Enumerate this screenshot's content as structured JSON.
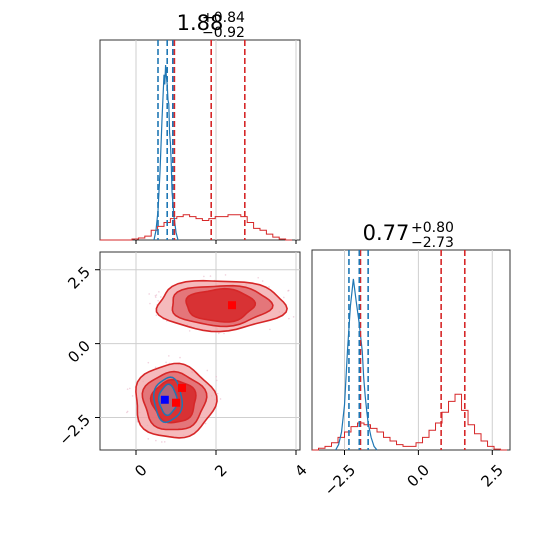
{
  "chart_data": {
    "type": "corner",
    "series_colors": {
      "posterior_wide": "#d62728",
      "posterior_narrow": "#1f77b4",
      "true_marker": "#0000ff",
      "max_marker": "#ff0000"
    },
    "grid": true,
    "params": [
      {
        "title_value": "1.88",
        "title_plus": "+0.84",
        "title_minus": "−0.92",
        "range": [
          -0.9,
          4.1
        ],
        "ticks": [
          0,
          2,
          4
        ],
        "tick_labels": [
          "0",
          "2",
          "4"
        ],
        "red_lines": [
          0.96,
          1.88,
          2.72
        ],
        "blue_lines": [
          0.55,
          0.78,
          0.92
        ]
      },
      {
        "title_value": "0.77",
        "title_plus": "+0.80",
        "title_minus": "−2.73",
        "range": [
          -3.6,
          3.1
        ],
        "ticks": [
          -2.5,
          0,
          2.5
        ],
        "tick_labels": [
          "−2.5",
          "0.0",
          "2.5"
        ],
        "red_lines": [
          -1.96,
          0.77,
          1.57
        ],
        "blue_lines": [
          -2.35,
          -2.0,
          -1.7
        ]
      }
    ],
    "hist_bins": [
      -0.9,
      -0.74,
      -0.58,
      -0.42,
      -0.26,
      -0.1,
      0.06,
      0.22,
      0.38,
      0.54,
      0.7,
      0.86,
      1.02,
      1.18,
      1.34,
      1.5,
      1.66,
      1.82,
      1.98,
      2.14,
      2.3,
      2.46,
      2.62,
      2.78,
      2.94,
      3.1,
      3.26,
      3.42,
      3.58,
      3.74,
      3.9
    ],
    "hist1_red": [
      0,
      0,
      0,
      0,
      0,
      0.005,
      0.01,
      0.02,
      0.05,
      0.07,
      0.09,
      0.11,
      0.12,
      0.13,
      0.12,
      0.11,
      0.1,
      0.11,
      0.12,
      0.12,
      0.13,
      0.13,
      0.12,
      0.09,
      0.06,
      0.05,
      0.03,
      0.015,
      0.005,
      0
    ],
    "hist1_blue_x": [
      0.45,
      0.5,
      0.55,
      0.6,
      0.65,
      0.7,
      0.72,
      0.74,
      0.76,
      0.78,
      0.8,
      0.82,
      0.84,
      0.86,
      0.88,
      0.9,
      0.95,
      1.0,
      1.05
    ],
    "hist1_blue_y": [
      0,
      0.05,
      0.15,
      0.35,
      0.62,
      0.85,
      0.8,
      0.9,
      0.84,
      0.8,
      0.72,
      0.7,
      0.55,
      0.5,
      0.4,
      0.25,
      0.12,
      0.04,
      0
    ],
    "hist2_bins": [
      -3.6,
      -3.38,
      -3.16,
      -2.94,
      -2.72,
      -2.5,
      -2.28,
      -2.06,
      -1.84,
      -1.62,
      -1.4,
      -1.18,
      -0.96,
      -0.74,
      -0.52,
      -0.3,
      -0.08,
      0.14,
      0.36,
      0.58,
      0.8,
      1.02,
      1.24,
      1.46,
      1.68,
      1.9,
      2.12,
      2.34,
      2.56,
      2.78,
      3.0
    ],
    "hist2_red": [
      0,
      0.01,
      0.02,
      0.04,
      0.07,
      0.1,
      0.13,
      0.15,
      0.14,
      0.12,
      0.1,
      0.07,
      0.05,
      0.03,
      0.02,
      0.02,
      0.04,
      0.07,
      0.11,
      0.15,
      0.21,
      0.27,
      0.31,
      0.22,
      0.14,
      0.09,
      0.05,
      0.02,
      0.005,
      0
    ],
    "hist2_blue_x": [
      -2.8,
      -2.7,
      -2.6,
      -2.5,
      -2.4,
      -2.3,
      -2.2,
      -2.1,
      -2.0,
      -1.9,
      -1.85,
      -1.8,
      -1.75,
      -1.7,
      -1.6,
      -1.5,
      -1.4
    ],
    "hist2_blue_y": [
      0,
      0.03,
      0.1,
      0.25,
      0.55,
      0.8,
      0.95,
      0.82,
      0.7,
      0.55,
      0.4,
      0.3,
      0.22,
      0.15,
      0.07,
      0.02,
      0
    ],
    "scatter_points_source": "faint sample points around both clusters",
    "clusters": [
      {
        "center": [
          2.1,
          1.3
        ],
        "levels": [
          [
            1.6,
            0.85
          ],
          [
            1.25,
            0.68
          ],
          [
            0.85,
            0.55
          ]
        ]
      },
      {
        "center": [
          0.95,
          -1.95
        ],
        "levels": [
          [
            1.0,
            1.25
          ],
          [
            0.78,
            0.98
          ],
          [
            0.55,
            0.72
          ]
        ]
      }
    ],
    "blue_contours": [
      {
        "center": [
          0.8,
          -1.9
        ],
        "levels": [
          [
            0.35,
            0.75
          ],
          [
            0.22,
            0.5
          ]
        ]
      }
    ],
    "markers": [
      {
        "kind": "max",
        "x": 2.4,
        "y": 1.3
      },
      {
        "kind": "max",
        "x": 1.15,
        "y": -1.5
      },
      {
        "kind": "max",
        "x": 1.0,
        "y": -2.0
      },
      {
        "kind": "true",
        "x": 0.72,
        "y": -1.9
      }
    ]
  }
}
